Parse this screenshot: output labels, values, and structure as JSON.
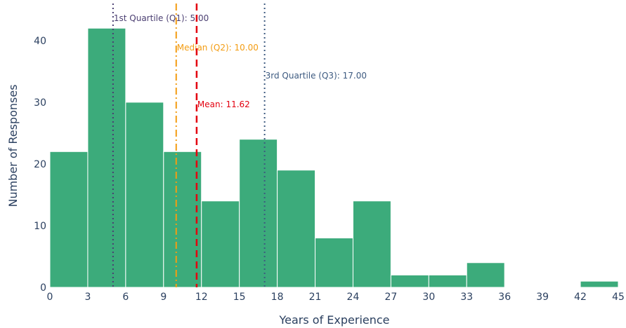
{
  "chart_data": {
    "type": "bar",
    "xlabel": "Years of Experience",
    "ylabel": "Number of Responses",
    "xlim": [
      0,
      45
    ],
    "ylim": [
      0,
      46
    ],
    "x_ticks": [
      0,
      3,
      6,
      9,
      12,
      15,
      18,
      21,
      24,
      27,
      30,
      33,
      36,
      39,
      42,
      45
    ],
    "y_ticks": [
      0,
      10,
      20,
      30,
      40
    ],
    "grid": false,
    "bin_width": 3,
    "bins": [
      {
        "start": 0,
        "end": 3,
        "count": 22
      },
      {
        "start": 3,
        "end": 6,
        "count": 42
      },
      {
        "start": 6,
        "end": 9,
        "count": 30
      },
      {
        "start": 9,
        "end": 12,
        "count": 22
      },
      {
        "start": 12,
        "end": 15,
        "count": 14
      },
      {
        "start": 15,
        "end": 18,
        "count": 24
      },
      {
        "start": 18,
        "end": 21,
        "count": 19
      },
      {
        "start": 21,
        "end": 24,
        "count": 8
      },
      {
        "start": 24,
        "end": 27,
        "count": 14
      },
      {
        "start": 27,
        "end": 30,
        "count": 2
      },
      {
        "start": 30,
        "end": 33,
        "count": 2
      },
      {
        "start": 33,
        "end": 36,
        "count": 4
      },
      {
        "start": 42,
        "end": 45,
        "count": 1
      }
    ],
    "bar_color": "#3cab7b",
    "reference_lines": [
      {
        "name": "q1",
        "label": "1st Quartile (Q1): 5.00",
        "value": 5.0,
        "color": "#4b3f72",
        "dash": "dot"
      },
      {
        "name": "median",
        "label": "Median (Q2): 10.00",
        "value": 10.0,
        "color": "#f39c12",
        "dash": "dashdot"
      },
      {
        "name": "mean",
        "label": "Mean: 11.62",
        "value": 11.62,
        "color": "#e3000f",
        "dash": "dash"
      },
      {
        "name": "q3",
        "label": "3rd Quartile (Q3): 17.00",
        "value": 17.0,
        "color": "#3d5a80",
        "dash": "dot"
      }
    ]
  }
}
